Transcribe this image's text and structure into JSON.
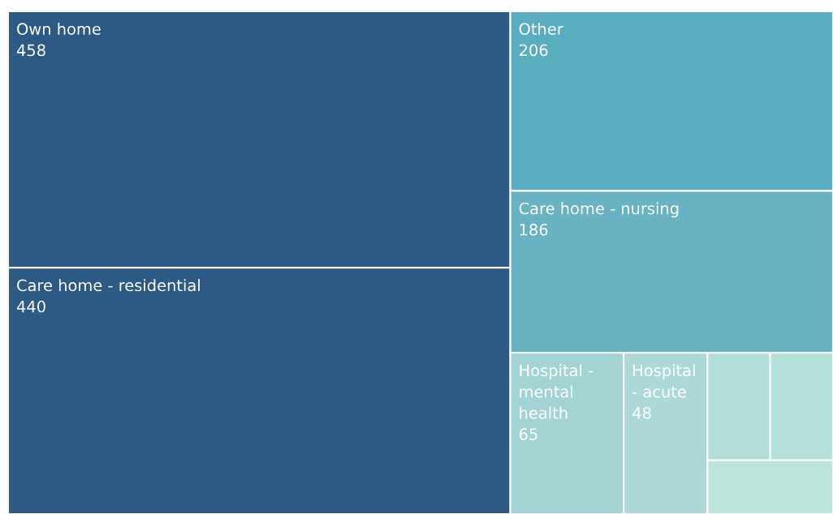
{
  "chart_data": {
    "type": "other",
    "categories": [
      "Own home",
      "Care home - residential",
      "Other",
      "Care home - nursing",
      "Hospital - mental health",
      "Hospital - acute",
      null,
      null,
      null
    ],
    "values": [
      458,
      440,
      206,
      186,
      65,
      48,
      null,
      null,
      null
    ],
    "colors": [
      "#2d5a84",
      "#2d5a84",
      "#5aadbf",
      "#68b2c2",
      "#a3d3d2",
      "#acd9d7",
      "#b3ddd8",
      "#b5dfd9",
      "#bde3dc"
    ],
    "data_labels": true
  }
}
